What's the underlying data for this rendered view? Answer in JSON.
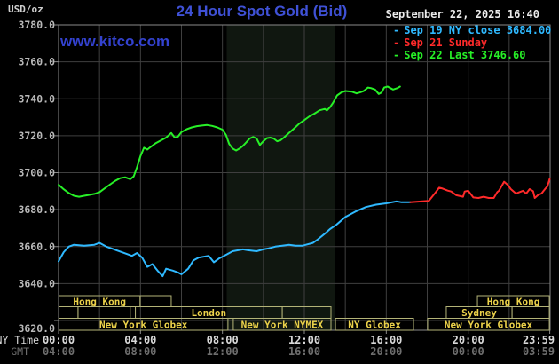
{
  "header": {
    "unit_label": "USD/oz",
    "title": "24 Hour Spot Gold (Bid)",
    "watermark": "www.kitco.com",
    "datetime": "September 22, 2025 16:40"
  },
  "legend": {
    "items": [
      {
        "name": "sep-19",
        "color": "#2fb9ff",
        "dash": "-",
        "label": "Sep 19 NY close 3684.00"
      },
      {
        "name": "sep-21",
        "color": "#ff2a2a",
        "dash": "-",
        "label": "Sep 21 Sunday"
      },
      {
        "name": "sep-22",
        "color": "#27f027",
        "dash": "-",
        "label": "Sep 22 Last 3746.60"
      }
    ]
  },
  "axis": {
    "ny_time_label": "NY Time",
    "gmt_label": "GMT",
    "x_ticks": [
      {
        "ny": "00:00",
        "gmt": "04:00",
        "h": 0
      },
      {
        "ny": "04:00",
        "gmt": "08:00",
        "h": 4
      },
      {
        "ny": "08:00",
        "gmt": "12:00",
        "h": 8
      },
      {
        "ny": "12:00",
        "gmt": "16:00",
        "h": 12
      },
      {
        "ny": "16:00",
        "gmt": "20:00",
        "h": 16
      },
      {
        "ny": "20:00",
        "gmt": "00:00",
        "h": 20
      },
      {
        "ny": "23:59",
        "gmt": "03:59",
        "h": 23.983,
        "clamp": 607
      }
    ],
    "y_ticks": [
      {
        "label": "3780.0",
        "v": 3780
      },
      {
        "label": "3760.0",
        "v": 3760
      },
      {
        "label": "3740.0",
        "v": 3740
      },
      {
        "label": "3720.0",
        "v": 3720
      },
      {
        "label": "3700.0",
        "v": 3700
      },
      {
        "label": "3680.0",
        "v": 3680
      },
      {
        "label": "3660.0",
        "v": 3660
      },
      {
        "label": "3640.0",
        "v": 3640
      },
      {
        "label": "3620.0",
        "v": 3620,
        "dy": 9
      }
    ]
  },
  "colors": {
    "background": "#000000",
    "plot_border": "#8a8a8a",
    "gridline": "#3f3f3f",
    "band": "#101710",
    "title_blue": "#3f51d6",
    "session_border": "#b3b377",
    "session_text": "#ecd24a",
    "ny_time_text": "#d9d9d9",
    "gmt_text": "#6e6e6e",
    "y_label_text": "#b8b8b8",
    "cyan_line": "#2fb9ff",
    "red_line": "#ff2a2a",
    "green_line": "#27f027"
  },
  "chart_data": {
    "type": "line",
    "title": "24 Hour Spot Gold (Bid)",
    "xlabel": "NY Time 00:00-23:59 (GMT 04:00-03:59)",
    "ylabel": "USD/oz",
    "ylim": [
      3620,
      3780
    ],
    "xlim_hours": [
      0,
      24
    ],
    "grid": true,
    "legend_position": "top-right",
    "nymex_band_hours": [
      8.21,
      13.5
    ],
    "series": [
      {
        "name": "Sep 19 NY close",
        "color": "#2fb9ff",
        "close": 3684.0,
        "points": [
          [
            0,
            3652
          ],
          [
            0.25,
            3657
          ],
          [
            0.5,
            3660
          ],
          [
            0.75,
            3661
          ],
          [
            1.25,
            3660.5
          ],
          [
            1.75,
            3661
          ],
          [
            2,
            3662
          ],
          [
            2.33,
            3660
          ],
          [
            2.83,
            3658
          ],
          [
            3.33,
            3656
          ],
          [
            3.58,
            3655
          ],
          [
            3.83,
            3656.5
          ],
          [
            4.08,
            3654
          ],
          [
            4.33,
            3649
          ],
          [
            4.58,
            3650.5
          ],
          [
            4.83,
            3647
          ],
          [
            5.08,
            3644
          ],
          [
            5.25,
            3648
          ],
          [
            5.58,
            3647
          ],
          [
            5.83,
            3646
          ],
          [
            6,
            3645
          ],
          [
            6.33,
            3648
          ],
          [
            6.58,
            3652.5
          ],
          [
            6.83,
            3654
          ],
          [
            7.08,
            3654.5
          ],
          [
            7.33,
            3655
          ],
          [
            7.58,
            3651.5
          ],
          [
            7.83,
            3653.5
          ],
          [
            8.17,
            3655.5
          ],
          [
            8.5,
            3657.5
          ],
          [
            9,
            3658.5
          ],
          [
            9.25,
            3658
          ],
          [
            9.67,
            3657.5
          ],
          [
            10,
            3658.5
          ],
          [
            10.25,
            3659
          ],
          [
            10.58,
            3660
          ],
          [
            10.92,
            3660.5
          ],
          [
            11.25,
            3661
          ],
          [
            11.58,
            3660.5
          ],
          [
            11.92,
            3660.5
          ],
          [
            12.08,
            3661
          ],
          [
            12.42,
            3662
          ],
          [
            12.67,
            3664
          ],
          [
            13,
            3667
          ],
          [
            13.25,
            3669.5
          ],
          [
            13.58,
            3672
          ],
          [
            14,
            3676
          ],
          [
            14.5,
            3679
          ],
          [
            15,
            3681.4
          ],
          [
            15.5,
            3682.7
          ],
          [
            16,
            3683.4
          ],
          [
            16.5,
            3684.5
          ],
          [
            16.75,
            3684
          ],
          [
            17.17,
            3684
          ]
        ]
      },
      {
        "name": "Sep 21 Sunday",
        "color": "#ff2a2a",
        "points": [
          [
            17.17,
            3684
          ],
          [
            18.08,
            3684.7
          ],
          [
            18.42,
            3689.5
          ],
          [
            18.58,
            3691.9
          ],
          [
            18.75,
            3691.4
          ],
          [
            19,
            3690.3
          ],
          [
            19.17,
            3689.8
          ],
          [
            19.42,
            3687.8
          ],
          [
            19.75,
            3687
          ],
          [
            19.83,
            3689.8
          ],
          [
            20,
            3690.2
          ],
          [
            20.25,
            3686.6
          ],
          [
            20.5,
            3686.3
          ],
          [
            20.75,
            3687
          ],
          [
            21,
            3686.3
          ],
          [
            21.25,
            3686.3
          ],
          [
            21.42,
            3689.5
          ],
          [
            21.5,
            3690.2
          ],
          [
            21.75,
            3695.1
          ],
          [
            21.92,
            3693.5
          ],
          [
            22.08,
            3691.1
          ],
          [
            22.33,
            3688.7
          ],
          [
            22.5,
            3689.5
          ],
          [
            22.67,
            3690.2
          ],
          [
            22.83,
            3688.7
          ],
          [
            23,
            3691.1
          ],
          [
            23.17,
            3690
          ],
          [
            23.25,
            3686.3
          ],
          [
            23.42,
            3688
          ],
          [
            23.58,
            3688.7
          ],
          [
            23.67,
            3690
          ],
          [
            23.75,
            3691.1
          ],
          [
            23.87,
            3692.7
          ],
          [
            23.98,
            3696.7
          ]
        ]
      },
      {
        "name": "Sep 22 Last",
        "color": "#27f027",
        "last": 3746.6,
        "points": [
          [
            0,
            3693.5
          ],
          [
            0.25,
            3691
          ],
          [
            0.5,
            3689
          ],
          [
            0.75,
            3687.5
          ],
          [
            1,
            3687
          ],
          [
            1.25,
            3687.5
          ],
          [
            1.5,
            3688
          ],
          [
            1.75,
            3688.5
          ],
          [
            2,
            3689.5
          ],
          [
            2.25,
            3691.5
          ],
          [
            2.5,
            3693.5
          ],
          [
            2.75,
            3695.5
          ],
          [
            3,
            3697
          ],
          [
            3.25,
            3697.5
          ],
          [
            3.5,
            3696.5
          ],
          [
            3.67,
            3698
          ],
          [
            3.83,
            3703
          ],
          [
            4,
            3709
          ],
          [
            4.17,
            3713.5
          ],
          [
            4.33,
            3712.5
          ],
          [
            4.5,
            3714
          ],
          [
            4.75,
            3716
          ],
          [
            5,
            3717.5
          ],
          [
            5.25,
            3719
          ],
          [
            5.5,
            3721.5
          ],
          [
            5.67,
            3719
          ],
          [
            5.83,
            3719.5
          ],
          [
            6,
            3722
          ],
          [
            6.25,
            3723.5
          ],
          [
            6.5,
            3724.5
          ],
          [
            6.75,
            3725.2
          ],
          [
            7,
            3725.5
          ],
          [
            7.25,
            3725.8
          ],
          [
            7.5,
            3725.3
          ],
          [
            7.75,
            3724.5
          ],
          [
            8,
            3723.3
          ],
          [
            8.17,
            3720.5
          ],
          [
            8.33,
            3715.5
          ],
          [
            8.5,
            3713
          ],
          [
            8.67,
            3712
          ],
          [
            8.83,
            3713
          ],
          [
            9,
            3714.5
          ],
          [
            9.17,
            3716.5
          ],
          [
            9.33,
            3718.5
          ],
          [
            9.5,
            3719.3
          ],
          [
            9.67,
            3718.5
          ],
          [
            9.83,
            3715
          ],
          [
            10,
            3717
          ],
          [
            10.17,
            3718.7
          ],
          [
            10.33,
            3719
          ],
          [
            10.5,
            3718.5
          ],
          [
            10.67,
            3717
          ],
          [
            10.83,
            3717.5
          ],
          [
            11,
            3719
          ],
          [
            11.25,
            3721.5
          ],
          [
            11.5,
            3724
          ],
          [
            11.75,
            3726.5
          ],
          [
            12,
            3728.5
          ],
          [
            12.25,
            3730.5
          ],
          [
            12.5,
            3732
          ],
          [
            12.75,
            3733.8
          ],
          [
            13,
            3734.5
          ],
          [
            13.1,
            3733.7
          ],
          [
            13.25,
            3735.4
          ],
          [
            13.4,
            3737.8
          ],
          [
            13.6,
            3741.8
          ],
          [
            13.8,
            3743.4
          ],
          [
            14,
            3744.2
          ],
          [
            14.33,
            3743.8
          ],
          [
            14.55,
            3742.9
          ],
          [
            14.7,
            3743.4
          ],
          [
            14.9,
            3744.2
          ],
          [
            15.1,
            3746.1
          ],
          [
            15.25,
            3745.8
          ],
          [
            15.45,
            3745
          ],
          [
            15.63,
            3742.6
          ],
          [
            15.77,
            3743.4
          ],
          [
            15.9,
            3746.1
          ],
          [
            16.07,
            3746.6
          ],
          [
            16.2,
            3745.8
          ],
          [
            16.33,
            3745
          ],
          [
            16.55,
            3745.8
          ],
          [
            16.67,
            3746.6
          ]
        ]
      }
    ],
    "sessions": [
      {
        "row": 1,
        "label": "Hong Kong",
        "start": 0.02,
        "end": 3.98
      },
      {
        "row": 1,
        "label": "",
        "start": 3.98,
        "end": 5.5
      },
      {
        "row": 1,
        "label": "Hong Kong",
        "start": 20.45,
        "end": 23.96
      },
      {
        "row": 2,
        "label": "",
        "start": 0.02,
        "end": 0.95
      },
      {
        "row": 2,
        "label": "",
        "start": 0.95,
        "end": 3.5
      },
      {
        "row": 2,
        "label": "London",
        "start": 3.75,
        "end": 10.92
      },
      {
        "row": 2,
        "label": "",
        "start": 10.92,
        "end": 13.3
      },
      {
        "row": 2,
        "label": "Sydney",
        "start": 18.93,
        "end": 22.14
      },
      {
        "row": 2,
        "label": "",
        "start": 22.14,
        "end": 23.96
      },
      {
        "row": 3,
        "label": "New York Globex",
        "start": 0.02,
        "end": 8.27
      },
      {
        "row": 3,
        "label": "New York NYMEX",
        "start": 8.53,
        "end": 13.3
      },
      {
        "row": 3,
        "label": "NY Globex",
        "start": 13.52,
        "end": 17.33
      },
      {
        "row": 3,
        "label": "New York Globex",
        "start": 18.02,
        "end": 23.96
      }
    ]
  }
}
